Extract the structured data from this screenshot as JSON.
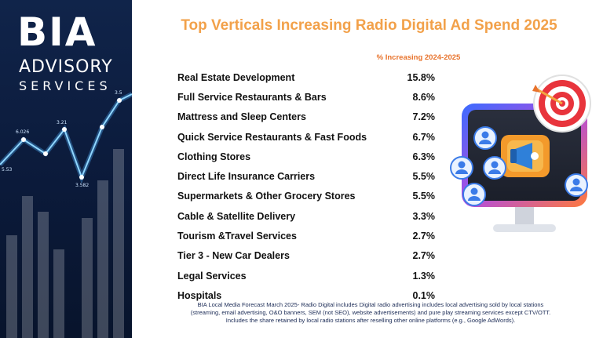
{
  "brand": {
    "logo_text": "BIA",
    "line1": "ADVISORY",
    "line2": "SERVICES",
    "deco_tick_labels": [
      "6.026",
      "5.53",
      "3.582",
      "3.21",
      "3.5"
    ]
  },
  "colors": {
    "title": "#f2a14a",
    "header": "#e8732c",
    "panel": "#0b1a3a",
    "text": "#111111"
  },
  "chart_data": {
    "type": "table",
    "title": "Top Verticals Increasing Radio Digital Ad Spend 2025",
    "column_header": "% Increasing 2024-2025",
    "categories": [
      "Real Estate Development",
      "Full Service Restaurants & Bars",
      "Mattress and Sleep Centers",
      "Quick Service Restaurants & Fast Foods",
      "Clothing Stores",
      "Direct Life Insurance Carriers",
      "Supermarkets & Other Grocery Stores",
      "Cable & Satellite Delivery",
      "Tourism &Travel Services",
      "Tier 3 - New Car Dealers",
      "Legal Services",
      "Hospitals"
    ],
    "values": [
      15.8,
      8.6,
      7.2,
      6.7,
      6.3,
      5.5,
      5.5,
      3.3,
      2.7,
      2.7,
      1.3,
      0.1
    ],
    "value_labels": [
      "15.8%",
      "8.6%",
      "7.2%",
      "6.7%",
      "6.3%",
      "5.5%",
      "5.5%",
      "3.3%",
      "2.7%",
      "2.7%",
      "1.3%",
      "0.1%"
    ]
  },
  "illustration": {
    "icons": [
      "target-icon",
      "megaphone-icon",
      "user-icon",
      "monitor-icon"
    ]
  },
  "footnote": {
    "line1": "BIA Local Media Forecast March 2025- Radio Digital includes Digital radio advertising includes local advertising sold by local stations",
    "line2": "(streaming, email advertising, O&O banners, SEM (not SEO), website advertisements) and pure play streaming services except CTV/OTT.",
    "line3": "Includes the share retained by local radio stations after reselling other online platforms (e.g., Google AdWords)."
  }
}
